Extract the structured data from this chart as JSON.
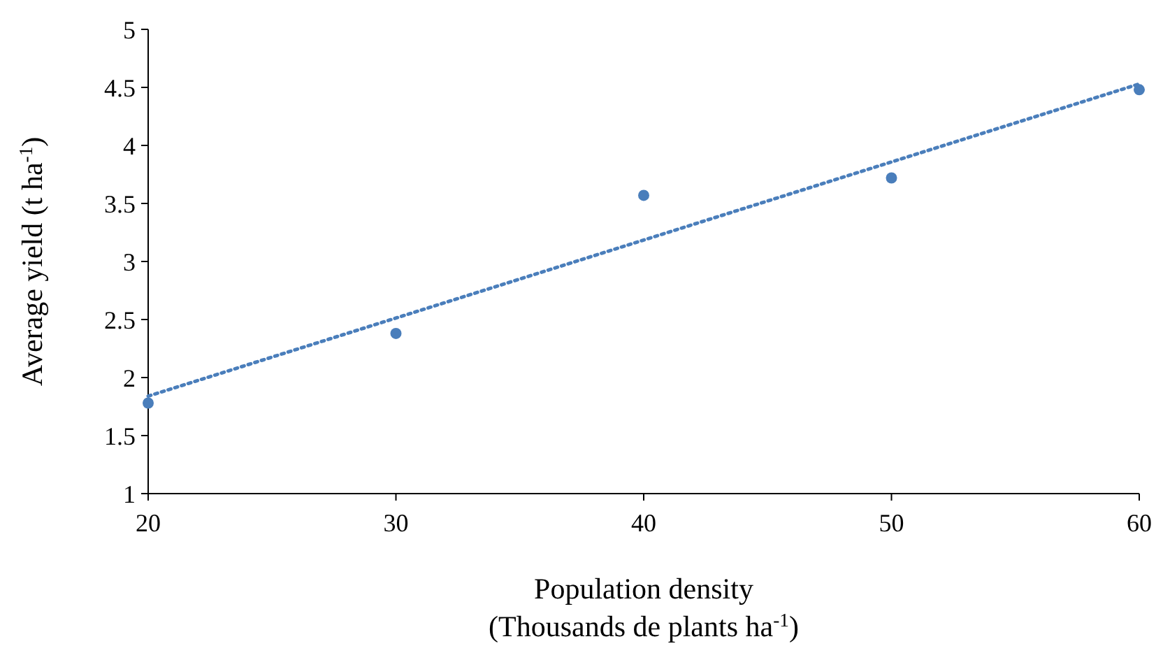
{
  "chart_data": {
    "type": "scatter",
    "xlabel": "Population density\n(Thousands de plants ha$^{-1}$)",
    "ylabel": "Average yield (t ha$^{-1}$)",
    "xlim": [
      20,
      60
    ],
    "xticks": [
      20,
      30,
      40,
      50,
      60
    ],
    "ylim": [
      1,
      5
    ],
    "yticks": [
      1,
      {
        "value": 1.5,
        "label": "1.5"
      },
      2,
      {
        "value": 2.5,
        "label": "2.5"
      },
      3,
      {
        "value": 3.5,
        "label": "3.5"
      },
      4,
      {
        "value": 4.5,
        "label": "4.5"
      },
      5
    ],
    "grid": false,
    "marker": "circle",
    "series": [
      {
        "color": "#4a7ebb",
        "x": [
          20,
          30,
          40,
          50,
          60
        ],
        "values": [
          1.78,
          2.38,
          3.57,
          3.72,
          4.48
        ]
      },
      {
        "type": "line",
        "color": "#4a7ebb",
        "line_style": "dotted",
        "marker": "none",
        "x": [
          20,
          60
        ],
        "values": [
          1.84,
          4.53
        ]
      }
    ]
  }
}
